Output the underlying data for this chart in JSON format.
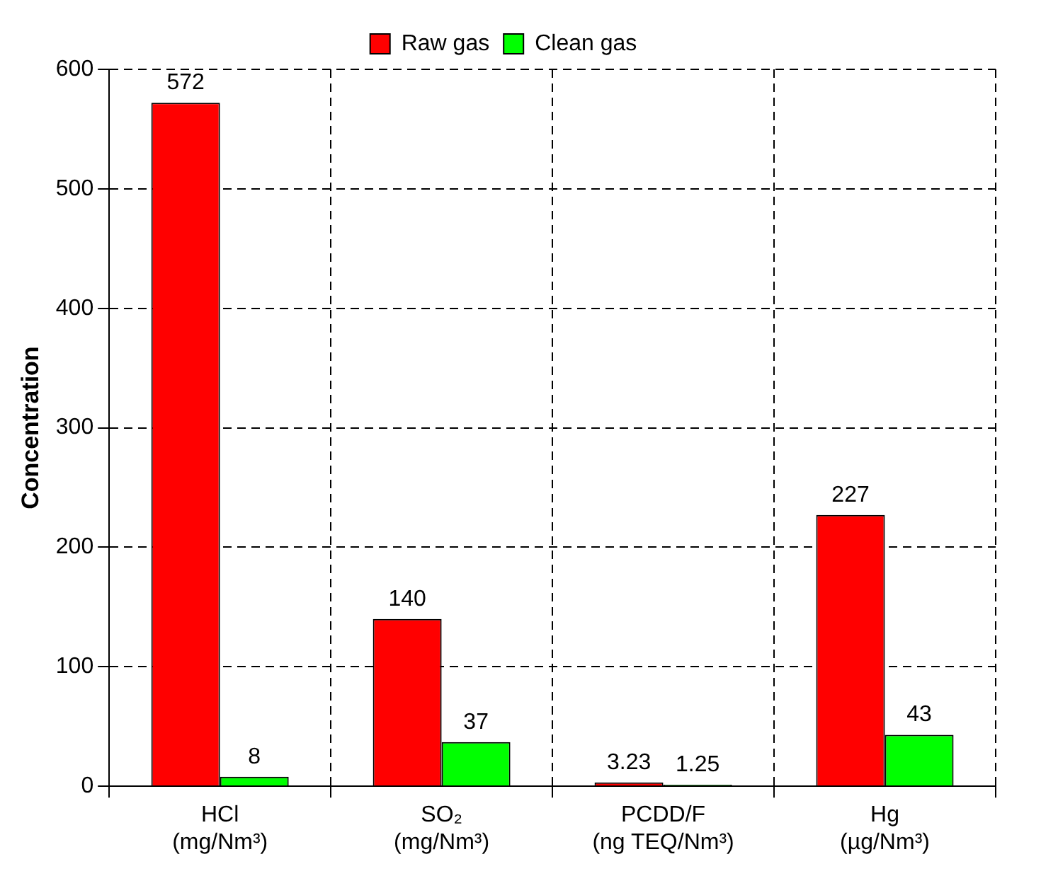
{
  "chart_data": {
    "type": "bar",
    "ylabel": "Concentration",
    "categories": [
      "HCl\n(mg/Nm³)",
      "SO₂\n(mg/Nm³)",
      "PCDD/F\n(ng TEQ/Nm³)",
      "Hg\n(µg/Nm³)"
    ],
    "series": [
      {
        "name": "Raw gas",
        "color": "#ff0000",
        "values": [
          572,
          140,
          3.23,
          227
        ]
      },
      {
        "name": "Clean gas",
        "color": "#00ff00",
        "values": [
          8,
          37,
          1.25,
          43
        ]
      }
    ],
    "ylim": [
      0,
      600
    ],
    "yticks": [
      0,
      100,
      200,
      300,
      400,
      500,
      600
    ],
    "grid": true,
    "legend": "top",
    "data_labels": true
  }
}
